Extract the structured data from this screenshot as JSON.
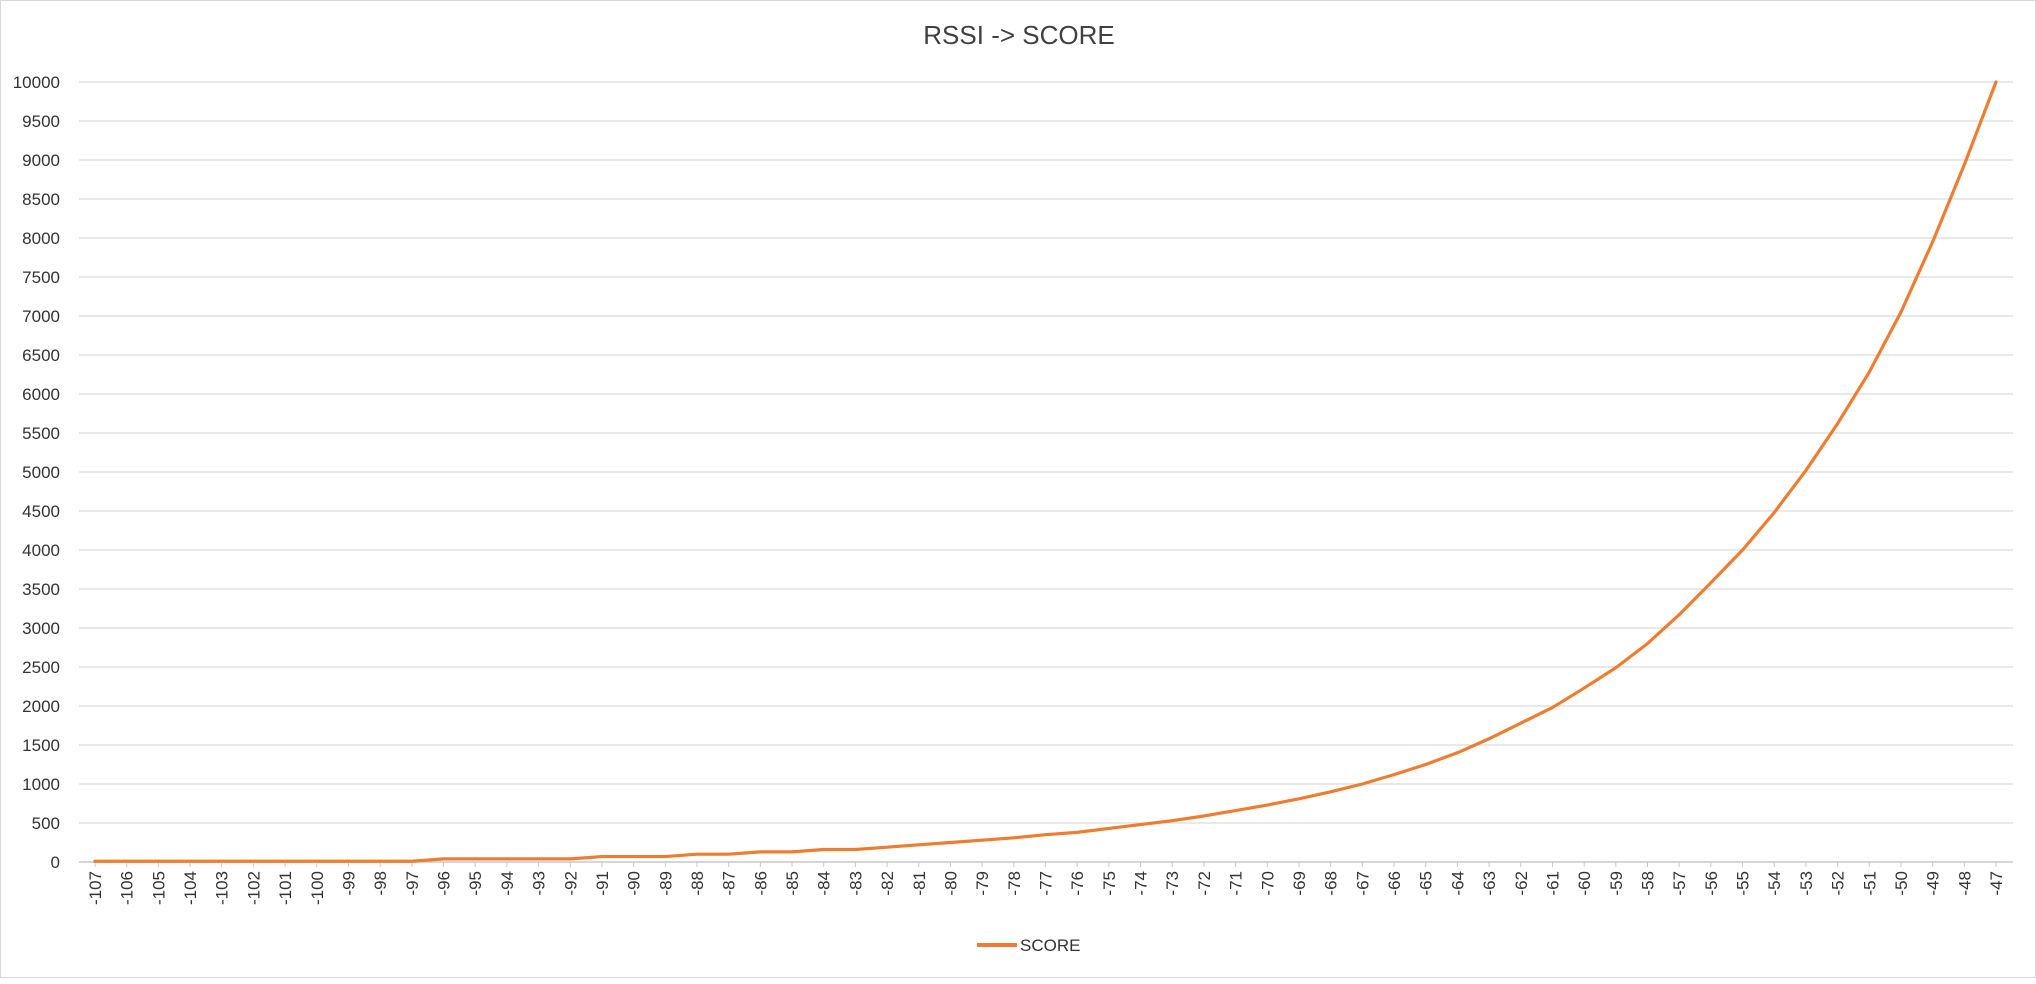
{
  "chart_data": {
    "type": "line",
    "title": "RSSI  ->  SCORE",
    "xlabel": "",
    "ylabel": "",
    "ylim": [
      0,
      10000
    ],
    "yticks": [
      "0",
      "500",
      "1000",
      "1500",
      "2000",
      "2500",
      "3000",
      "3500",
      "4000",
      "4500",
      "5000",
      "5500",
      "6000",
      "6500",
      "7000",
      "7500",
      "8000",
      "8500",
      "9000",
      "9500",
      "10000"
    ],
    "categories": [
      "-107",
      "-106",
      "-105",
      "-104",
      "-103",
      "-102",
      "-101",
      "-100",
      "-99",
      "-98",
      "-97",
      "-96",
      "-95",
      "-94",
      "-93",
      "-92",
      "-91",
      "-90",
      "-89",
      "-88",
      "-87",
      "-86",
      "-85",
      "-84",
      "-83",
      "-82",
      "-81",
      "-80",
      "-79",
      "-78",
      "-77",
      "-76",
      "-75",
      "-74",
      "-73",
      "-72",
      "-71",
      "-70",
      "-69",
      "-68",
      "-67",
      "-66",
      "-65",
      "-64",
      "-63",
      "-62",
      "-61",
      "-60",
      "-59",
      "-58",
      "-57",
      "-56",
      "-55",
      "-54",
      "-53",
      "-52",
      "-51",
      "-50",
      "-49",
      "-48",
      "-47"
    ],
    "series": [
      {
        "name": "SCORE",
        "color": "#ed7d31",
        "values": [
          10,
          10,
          10,
          10,
          10,
          10,
          10,
          10,
          10,
          10,
          10,
          40,
          40,
          40,
          40,
          40,
          70,
          70,
          70,
          100,
          100,
          130,
          130,
          160,
          160,
          190,
          220,
          250,
          280,
          310,
          350,
          380,
          430,
          480,
          530,
          590,
          660,
          730,
          810,
          900,
          1000,
          1120,
          1250,
          1400,
          1580,
          1780,
          1980,
          2230,
          2490,
          2800,
          3170,
          3580,
          4000,
          4480,
          5020,
          5620,
          6280,
          7050,
          7950,
          8940,
          10000
        ]
      }
    ],
    "grid": true,
    "legend_position": "bottom"
  }
}
